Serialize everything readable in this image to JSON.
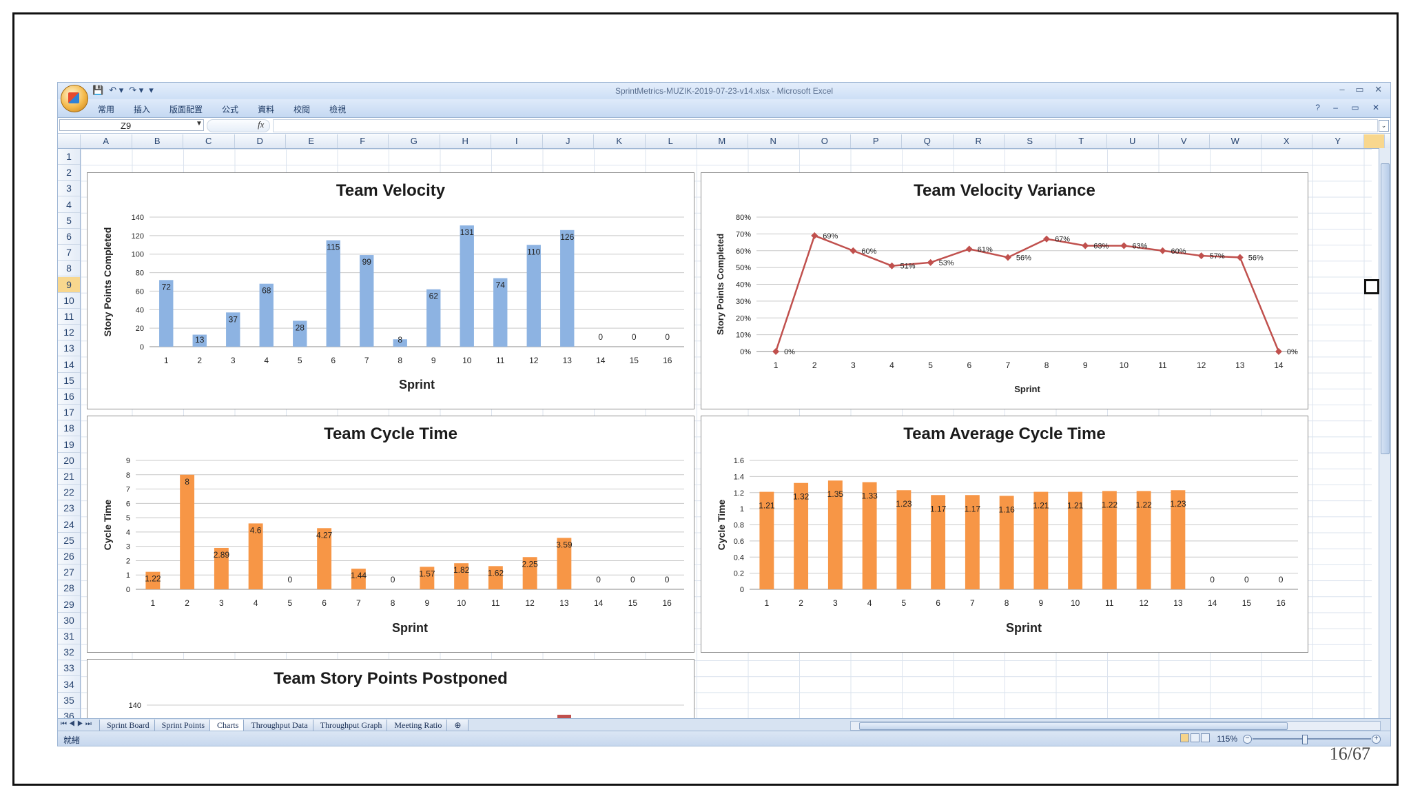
{
  "window": {
    "title": "SprintMetrics-MUZIK-2019-07-23-v14.xlsx - Microsoft Excel",
    "controls": "– ▭ ✕",
    "ribbon_controls": "? – ▭ ✕"
  },
  "qat": {
    "save": "💾",
    "undo": "↶ ▾",
    "redo": "↷ ▾",
    "customize": "▾"
  },
  "ribbon": {
    "tabs": [
      "常用",
      "插入",
      "版面配置",
      "公式",
      "資料",
      "校閱",
      "檢視"
    ]
  },
  "formula_bar": {
    "name_box": "Z9",
    "fx": "fx",
    "value": "",
    "expand": "⌄"
  },
  "columns": [
    "A",
    "B",
    "C",
    "D",
    "E",
    "F",
    "G",
    "H",
    "I",
    "J",
    "K",
    "L",
    "M",
    "N",
    "O",
    "P",
    "Q",
    "R",
    "S",
    "T",
    "U",
    "V",
    "W",
    "X",
    "Y"
  ],
  "selected_column": "Z",
  "selected_row": 9,
  "rows": [
    1,
    2,
    3,
    4,
    5,
    6,
    7,
    8,
    9,
    10,
    11,
    12,
    13,
    14,
    15,
    16,
    17,
    18,
    19,
    20,
    21,
    22,
    23,
    24,
    25,
    26,
    27,
    28,
    29,
    30,
    31,
    32,
    33,
    34,
    35,
    36
  ],
  "sheet_tabs": {
    "nav": "⏮◀▶⏭",
    "tabs": [
      "Sprint Board",
      "Sprint Points",
      "Charts",
      "Throughput Data",
      "Throughput Graph",
      "Meeting Ratio"
    ],
    "active": "Charts",
    "new_tab": "⊕"
  },
  "status": {
    "text": "就緒",
    "zoom": "115%",
    "zoom_out": "−",
    "zoom_in": "+"
  },
  "page_number": "16/67",
  "chart_data": [
    {
      "type": "bar",
      "title": "Team Velocity",
      "xlabel": "Sprint",
      "ylabel": "Story Points Completed",
      "color": "#8db3e2",
      "categories": [
        "1",
        "2",
        "3",
        "4",
        "5",
        "6",
        "7",
        "8",
        "9",
        "10",
        "11",
        "12",
        "13",
        "14",
        "15",
        "16"
      ],
      "values": [
        72,
        13,
        37,
        68,
        28,
        115,
        99,
        8,
        62,
        131,
        74,
        110,
        126,
        0,
        0,
        0
      ],
      "yticks": [
        "0",
        "20",
        "40",
        "60",
        "80",
        "100",
        "120",
        "140"
      ],
      "ylim": [
        0,
        140
      ]
    },
    {
      "type": "line",
      "title": "Team Velocity Variance",
      "xlabel": "Sprint",
      "ylabel": "Story Points Completed",
      "color": "#c0504d",
      "categories": [
        "1",
        "2",
        "3",
        "4",
        "5",
        "6",
        "7",
        "8",
        "9",
        "10",
        "11",
        "12",
        "13",
        "14"
      ],
      "values": [
        0,
        69,
        60,
        51,
        53,
        61,
        56,
        67,
        63,
        63,
        60,
        57,
        56,
        0
      ],
      "labels": [
        "0%",
        "69%",
        "60%",
        "51%",
        "53%",
        "61%",
        "56%",
        "67%",
        "63%",
        "63%",
        "60%",
        "57%",
        "56%",
        "0%"
      ],
      "yticks": [
        "0%",
        "10%",
        "20%",
        "30%",
        "40%",
        "50%",
        "60%",
        "70%",
        "80%"
      ],
      "ylim": [
        0,
        80
      ]
    },
    {
      "type": "bar",
      "title": "Team Cycle Time",
      "xlabel": "Sprint",
      "ylabel": "Cycle Time",
      "color": "#f79646",
      "categories": [
        "1",
        "2",
        "3",
        "4",
        "5",
        "6",
        "7",
        "8",
        "9",
        "10",
        "11",
        "12",
        "13",
        "14",
        "15",
        "16"
      ],
      "values": [
        1.22,
        8,
        2.89,
        4.6,
        0,
        4.27,
        1.44,
        0,
        1.57,
        1.82,
        1.62,
        2.25,
        3.59,
        0,
        0,
        0
      ],
      "labels": [
        "1.22",
        "8",
        "2.89",
        "4.6",
        "0",
        "4.27",
        "1.44",
        "0",
        "1.57",
        "1.82",
        "1.62",
        "2.25",
        "3.59",
        "0",
        "0",
        "0"
      ],
      "yticks": [
        "0",
        "1",
        "2",
        "3",
        "4",
        "5",
        "6",
        "7",
        "8",
        "9"
      ],
      "ylim": [
        0,
        9
      ]
    },
    {
      "type": "bar",
      "title": "Team Average Cycle Time",
      "xlabel": "Sprint",
      "ylabel": "Cycle Time",
      "color": "#f79646",
      "categories": [
        "1",
        "2",
        "3",
        "4",
        "5",
        "6",
        "7",
        "8",
        "9",
        "10",
        "11",
        "12",
        "13",
        "14",
        "15",
        "16"
      ],
      "values": [
        1.21,
        1.32,
        1.35,
        1.33,
        1.23,
        1.17,
        1.17,
        1.16,
        1.21,
        1.21,
        1.22,
        1.22,
        1.23,
        0,
        0,
        0
      ],
      "labels": [
        "1.21",
        "1.32",
        "1.35",
        "1.33",
        "1.23",
        "1.17",
        "1.17",
        "1.16",
        "1.21",
        "1.21",
        "1.22",
        "1.22",
        "1.23",
        "0",
        "0",
        "0"
      ],
      "yticks": [
        "0",
        "0.2",
        "0.4",
        "0.6",
        "0.8",
        "1",
        "1.2",
        "1.4",
        "1.6"
      ],
      "ylim": [
        0,
        1.6
      ]
    },
    {
      "type": "bar",
      "title": "Team Story Points Postponed",
      "xlabel": "",
      "ylabel": "",
      "color": "#c0504d",
      "yticks": [
        "140"
      ],
      "ylim": [
        0,
        140
      ]
    }
  ]
}
